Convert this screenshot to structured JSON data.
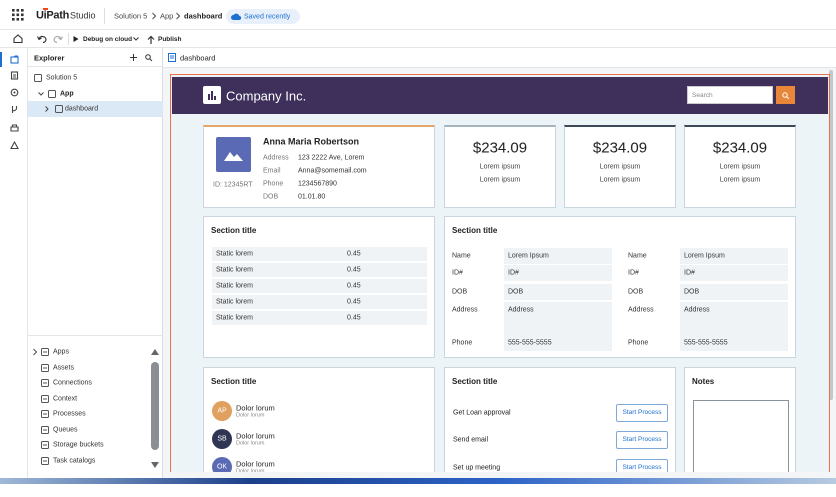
{
  "header": {
    "logo": "UiPath",
    "product": "Studio",
    "breadcrumb": [
      "Solution 5",
      "App",
      "dashboard"
    ],
    "status": "Saved recently"
  },
  "toolbar": {
    "debug": "Debug on cloud",
    "publish": "Publish"
  },
  "explorer": {
    "title": "Explorer",
    "tree": [
      "Solution 5",
      "App",
      "dashboard"
    ],
    "resources": [
      "Apps",
      "Assets",
      "Connections",
      "Context",
      "Processes",
      "Queues",
      "Storage buckets",
      "Task catalogs"
    ]
  },
  "tab": "dashboard",
  "app": {
    "company": "Company Inc.",
    "search_placeholder": "Search",
    "profile": {
      "name": "Anna Maria Robertson",
      "id": "ID: 12345RT",
      "fields": [
        [
          "Address",
          "123 2222 Ave, Lorem"
        ],
        [
          "Email",
          "Anna@somemail.com"
        ],
        [
          "Phone",
          "1234567890"
        ],
        [
          "DOB",
          "01.01.80"
        ]
      ]
    },
    "stats": [
      {
        "amount": "$234.09",
        "lines": [
          "Lorem ipsum",
          "Lorem ipsum"
        ]
      },
      {
        "amount": "$234.09",
        "lines": [
          "Lorem ipsum",
          "Lorem ipsum"
        ]
      },
      {
        "amount": "$234.09",
        "lines": [
          "Lorem ipsum",
          "Lorem ipsum"
        ]
      }
    ],
    "static_section": {
      "title": "Section title",
      "rows": [
        [
          "Static lorem",
          "0.45"
        ],
        [
          "Static lorem",
          "0.45"
        ],
        [
          "Static lorem",
          "0.45"
        ],
        [
          "Static lorem",
          "0.45"
        ],
        [
          "Static lorem",
          "0.45"
        ]
      ]
    },
    "details_section": {
      "title": "Section title",
      "columns": [
        [
          [
            "Name",
            "Lorem Ipsum"
          ],
          [
            "ID#",
            "ID#"
          ],
          [
            "DOB",
            "DOB"
          ],
          [
            "Address",
            "Address"
          ],
          [
            "Phone",
            "555-555-5555"
          ]
        ],
        [
          [
            "Name",
            "Lorem Ipsum"
          ],
          [
            "ID#",
            "ID#"
          ],
          [
            "DOB",
            "DOB"
          ],
          [
            "Address",
            "Address"
          ],
          [
            "Phone",
            "555-555-5555"
          ]
        ]
      ]
    },
    "people_section": {
      "title": "Section title",
      "people": [
        {
          "initials": "AP",
          "name": "Dolor lorum",
          "subtitle": "Dolor lorum"
        },
        {
          "initials": "SB",
          "name": "Dolor lorum",
          "subtitle": "Dolor lorum"
        },
        {
          "initials": "OK",
          "name": "Dolor lorum",
          "subtitle": "Dolor lorum"
        }
      ]
    },
    "process_section": {
      "title": "Section title",
      "tasks": [
        {
          "label": "Get Loan approval",
          "button": "Start Process"
        },
        {
          "label": "Send email",
          "button": "Start Process"
        },
        {
          "label": "Set up meeting",
          "button": "Start Process"
        }
      ]
    },
    "notes": {
      "title": "Notes"
    }
  }
}
